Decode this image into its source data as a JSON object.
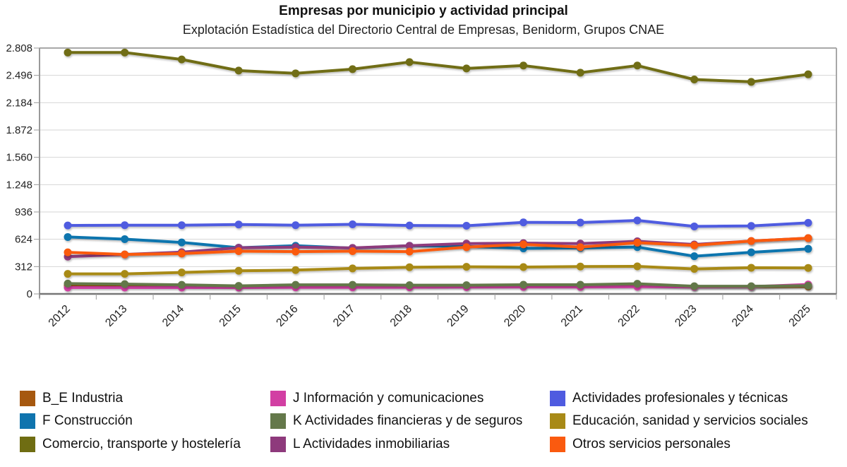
{
  "chart_data": {
    "type": "line",
    "title": "Empresas por municipio y actividad principal",
    "subtitle": "Explotación Estadística del Directorio Central de Empresas, Benidorm, Grupos CNAE",
    "xlabel": "",
    "ylabel": "",
    "ylim": [
      0,
      2808
    ],
    "yticks": [
      0,
      312,
      624,
      936,
      1248,
      1560,
      1872,
      2184,
      2496,
      2808
    ],
    "ytick_labels": [
      "0",
      "312",
      "624",
      "936",
      "1.248",
      "1.560",
      "1.872",
      "2.184",
      "2.496",
      "2.808"
    ],
    "grid": true,
    "legend_position": "bottom",
    "categories": [
      "2012",
      "2013",
      "2014",
      "2015",
      "2016",
      "2017",
      "2018",
      "2019",
      "2020",
      "2021",
      "2022",
      "2023",
      "2024",
      "2025"
    ],
    "series": [
      {
        "name": "B_E Industria",
        "color": "#a6580f",
        "values": [
          97,
          95,
          92,
          88,
          90,
          90,
          90,
          92,
          95,
          93,
          97,
          85,
          84,
          85
        ]
      },
      {
        "name": "F Construcción",
        "color": "#0f74ae",
        "values": [
          650,
          625,
          588,
          528,
          550,
          523,
          550,
          542,
          520,
          525,
          535,
          431,
          475,
          515
        ]
      },
      {
        "name": "Comercio, transporte y hostelería",
        "color": "#6f6d12",
        "values": [
          2757,
          2757,
          2678,
          2551,
          2519,
          2567,
          2648,
          2575,
          2608,
          2527,
          2608,
          2449,
          2422,
          2508
        ]
      },
      {
        "name": "J Información y comunicaciones",
        "color": "#d23fa3",
        "values": [
          73,
          73,
          73,
          73,
          75,
          75,
          76,
          78,
          80,
          80,
          82,
          80,
          82,
          108
        ]
      },
      {
        "name": "K Actividades financieras y de seguros",
        "color": "#64784a",
        "values": [
          118,
          112,
          104,
          92,
          104,
          104,
          100,
          100,
          105,
          105,
          116,
          88,
          88,
          94
        ]
      },
      {
        "name": "L Actividades inmobiliarias",
        "color": "#8e3a7c",
        "values": [
          426,
          451,
          477,
          528,
          534,
          525,
          550,
          575,
          580,
          575,
          601,
          565,
          604,
          637
        ]
      },
      {
        "name": "Actividades profesionales y técnicas",
        "color": "#4f5be0",
        "values": [
          782,
          785,
          785,
          793,
          785,
          795,
          782,
          779,
          817,
          815,
          839,
          771,
          777,
          812
        ]
      },
      {
        "name": "Educación, sanidad y servicios sociales",
        "color": "#a88a17",
        "values": [
          229,
          229,
          245,
          264,
          272,
          291,
          305,
          310,
          307,
          313,
          315,
          286,
          299,
          297
        ]
      },
      {
        "name": "Otros servicios personales",
        "color": "#fa5a0f",
        "values": [
          475,
          451,
          461,
          488,
          483,
          488,
          483,
          534,
          566,
          534,
          585,
          555,
          604,
          637
        ]
      }
    ]
  },
  "legend_columns": [
    [
      0,
      1,
      2
    ],
    [
      3,
      4,
      5
    ],
    [
      6,
      7,
      8
    ]
  ]
}
